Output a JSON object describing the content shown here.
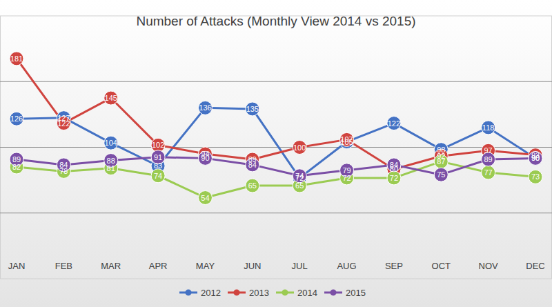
{
  "chart_data": {
    "type": "line",
    "title": "Number of Attacks (Monthly View 2014 vs 2015)",
    "categories": [
      "JAN",
      "FEB",
      "MAR",
      "APR",
      "MAY",
      "JUN",
      "JUL",
      "AUG",
      "SEP",
      "OCT",
      "NOV",
      "DEC"
    ],
    "series": [
      {
        "name": "2012",
        "color": "#4472c4",
        "values": [
          126,
          127,
          104,
          83,
          136,
          135,
          72,
          105,
          122,
          98,
          118,
          90
        ]
      },
      {
        "name": "2013",
        "color": "#d0443f",
        "values": [
          181,
          122,
          145,
          102,
          94,
          89,
          100,
          107,
          80,
          92,
          97,
          93
        ]
      },
      {
        "name": "2014",
        "color": "#9bcb52",
        "values": [
          82,
          78,
          81,
          74,
          54,
          65,
          65,
          72,
          72,
          87,
          77,
          73
        ]
      },
      {
        "name": "2015",
        "color": "#7b4fa6",
        "values": [
          89,
          84,
          88,
          91,
          90,
          84,
          74,
          79,
          84,
          75,
          89,
          90
        ]
      }
    ],
    "ylim": [
      -20,
      220
    ],
    "yticks": [
      40,
      100,
      160
    ],
    "grid": true,
    "tick_labels": "x",
    "data_labels": true,
    "marker": "circle",
    "legend": "bottom"
  }
}
